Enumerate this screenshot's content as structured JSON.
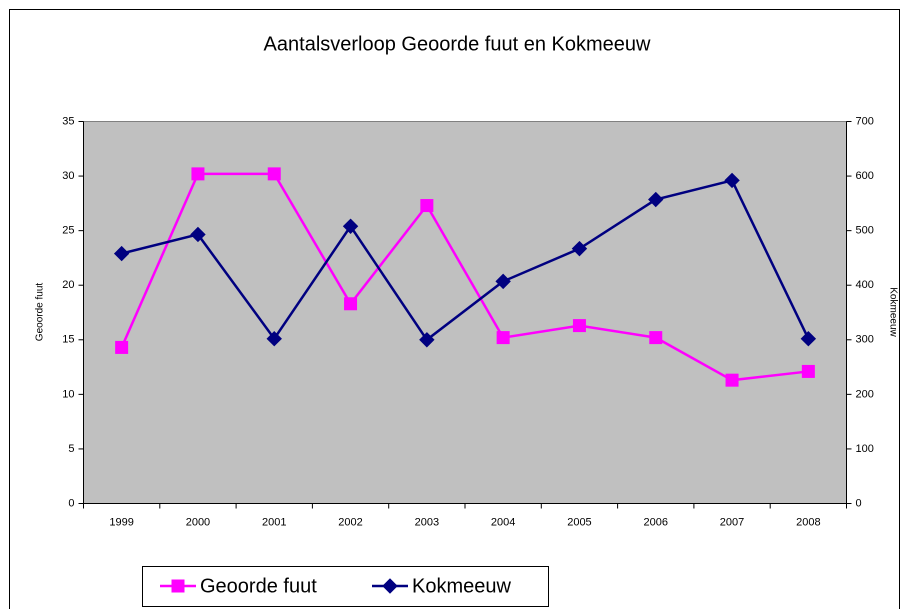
{
  "chart_data": {
    "type": "line",
    "title": "Aantalsverloop Geoorde fuut en Kokmeeuw",
    "categories": [
      "1999",
      "2000",
      "2001",
      "2002",
      "2003",
      "2004",
      "2005",
      "2006",
      "2007",
      "2008"
    ],
    "ylabel": "Geoorde fuut",
    "y2label": "Kokmeeuw",
    "ylim": [
      0,
      35
    ],
    "yticks": [
      0,
      5,
      10,
      15,
      20,
      25,
      30,
      35
    ],
    "y2lim": [
      0,
      700
    ],
    "y2ticks": [
      0,
      100,
      200,
      300,
      400,
      500,
      600,
      700
    ],
    "grid": false,
    "legend": "bottom",
    "series": [
      {
        "name": "Geoorde fuut",
        "color": "#ff00ff",
        "marker": "square",
        "values": [
          14.3,
          30.2,
          30.2,
          18.3,
          27.3,
          15.2,
          16.3,
          15.2,
          11.3,
          12.1
        ]
      },
      {
        "name": "Kokmeeuw",
        "color": "#000080",
        "marker": "diamond",
        "axis": "y2",
        "values": [
          458,
          493,
          302,
          508,
          300,
          407,
          467,
          557,
          592,
          302
        ]
      }
    ]
  }
}
